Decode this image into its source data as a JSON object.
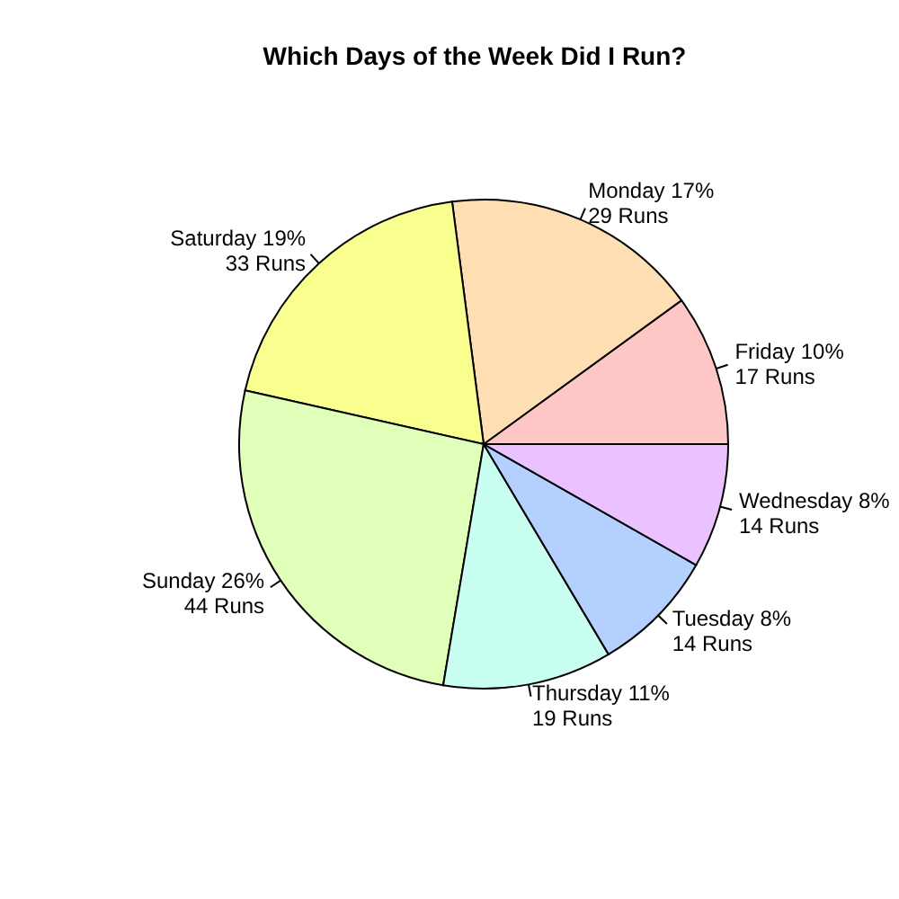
{
  "chart_data": {
    "type": "pie",
    "title": "Which Days of the Week Did I Run?",
    "categories": [
      "Friday 10%",
      "Monday 17%",
      "Saturday 19%",
      "Sunday 26%",
      "Thursday 11%",
      "Tuesday 8%",
      "Wednesday 8%"
    ],
    "values": [
      17,
      29,
      33,
      44,
      19,
      14,
      14
    ],
    "value_labels": [
      "17 Runs",
      "29 Runs",
      "33 Runs",
      "44 Runs",
      "19 Runs",
      "14 Runs",
      "14 Runs"
    ],
    "colors": [
      "#ffc6c6",
      "#ffdeb4",
      "#f9ff8f",
      "#e0ffb9",
      "#c8fff0",
      "#b4d0ff",
      "#e9c2ff"
    ]
  }
}
